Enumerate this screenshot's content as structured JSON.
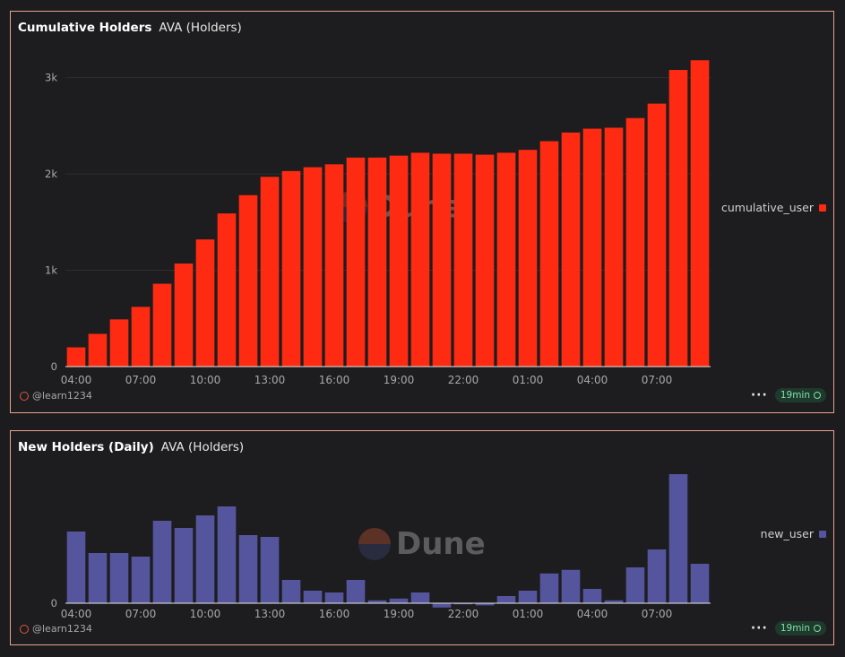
{
  "panels": [
    {
      "title": "Cumulative Holders",
      "subtitle": "AVA (Holders)",
      "author": "@learn1234",
      "refresh": "19min",
      "watermark": "Dune"
    },
    {
      "title": "New Holders (Daily)",
      "subtitle": "AVA (Holders)",
      "author": "@learn1234",
      "refresh": "19min",
      "watermark": "Dune"
    }
  ],
  "colors": {
    "cumulative": "#ff2a12",
    "new": "#55559d",
    "border": "#e8a38f"
  },
  "icons": {
    "author": "dune-avatar-icon",
    "menu": "more-dots-icon",
    "status": "check-circle-icon"
  },
  "chart_data": [
    {
      "type": "bar",
      "title": "Cumulative Holders",
      "series": [
        {
          "name": "cumulative_user",
          "values": [
            200,
            340,
            490,
            620,
            860,
            1070,
            1320,
            1590,
            1780,
            1970,
            2030,
            2070,
            2100,
            2170,
            2170,
            2190,
            2220,
            2210,
            2210,
            2200,
            2220,
            2250,
            2340,
            2430,
            2470,
            2480,
            2580,
            2730,
            3080,
            3180
          ]
        }
      ],
      "x_tick_labels": [
        "04:00",
        "07:00",
        "10:00",
        "13:00",
        "16:00",
        "19:00",
        "22:00",
        "01:00",
        "04:00",
        "07:00"
      ],
      "x_tick_every": 3,
      "y_tick_labels": [
        "0",
        "1k",
        "2k",
        "3k"
      ],
      "y_ticks": [
        0,
        1000,
        2000,
        3000
      ],
      "ylim": [
        0,
        3350
      ],
      "legend": "right",
      "grid": true
    },
    {
      "type": "bar",
      "title": "New Holders (Daily)",
      "series": [
        {
          "name": "new_user",
          "values": [
            200,
            140,
            140,
            130,
            230,
            210,
            245,
            270,
            190,
            185,
            65,
            35,
            30,
            65,
            8,
            13,
            30,
            -12,
            -3,
            -6,
            20,
            35,
            83,
            93,
            40,
            8,
            100,
            150,
            360,
            110
          ]
        }
      ],
      "x_tick_labels": [
        "04:00",
        "07:00",
        "10:00",
        "13:00",
        "16:00",
        "19:00",
        "22:00",
        "01:00",
        "04:00",
        "07:00"
      ],
      "x_tick_every": 3,
      "y_tick_labels": [
        "0"
      ],
      "y_ticks": [
        0
      ],
      "ylim": [
        -20,
        380
      ],
      "legend": "right",
      "grid": false
    }
  ]
}
